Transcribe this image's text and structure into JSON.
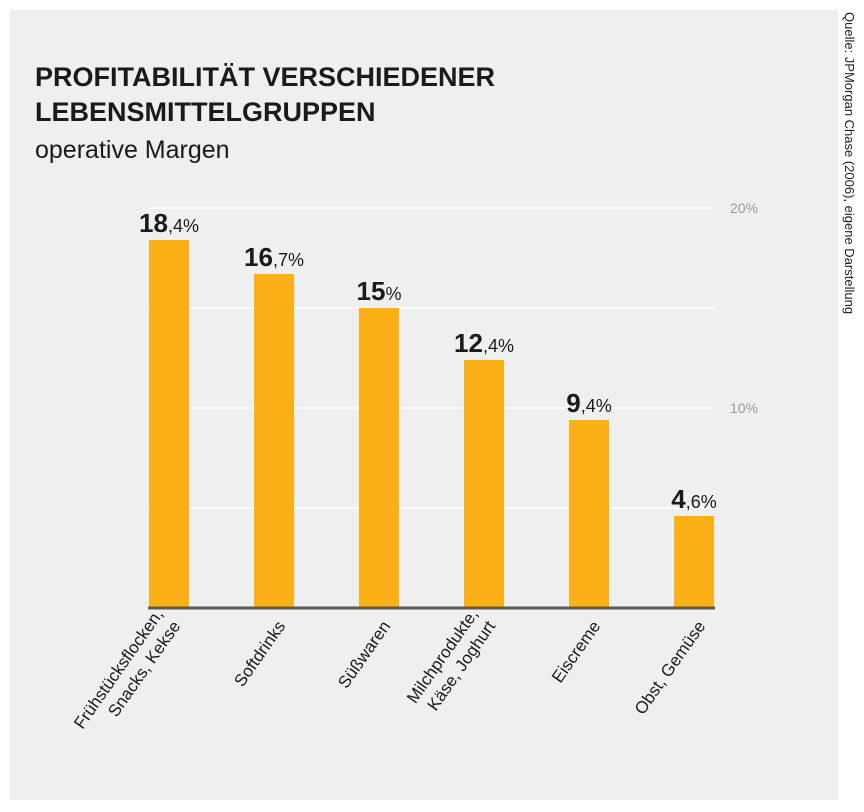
{
  "chart_data": {
    "type": "bar",
    "title": "PROFITABILITÄT VERSCHIEDENER\nLEBENSMITTELGRUPPEN",
    "subtitle": "operative Margen",
    "source": "Quelle: JPMorgan Chase (2006), eigene Darstellung",
    "categories": [
      "Frühstücksflocken,\nSnacks, Kekse",
      "Softdrinks",
      "Süßwaren",
      "Milchprodukte,\nKäse, Joghurt",
      "Eiscreme",
      "Obst, Gemüse"
    ],
    "values": [
      18.4,
      16.7,
      15,
      12.4,
      9.4,
      4.6
    ],
    "value_labels": [
      "18,4%",
      "16,7%",
      "15%",
      "12,4%",
      "9,4%",
      "4,6%"
    ],
    "color": "#fbb017",
    "ylim": [
      0,
      20
    ],
    "yticks": [
      5,
      {
        "value": 10,
        "label": "10%"
      },
      15,
      {
        "value": 20,
        "label": "20%"
      }
    ],
    "grid": true
  }
}
